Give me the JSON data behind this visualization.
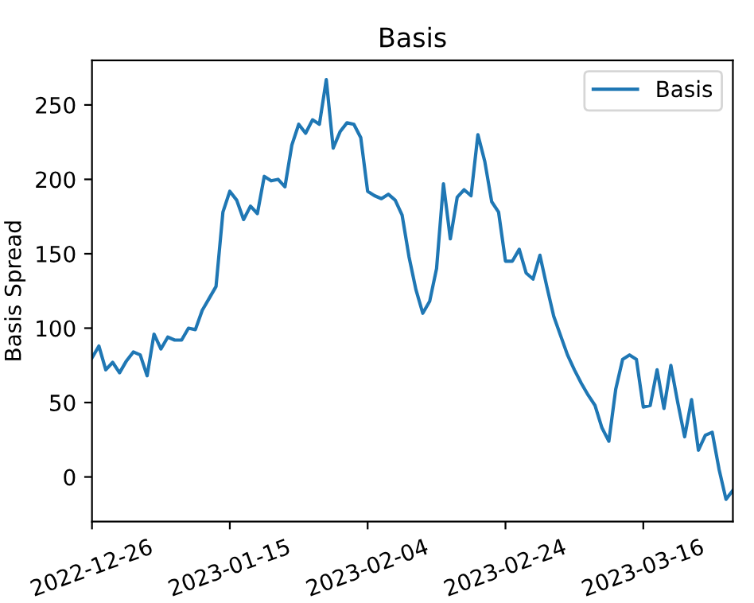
{
  "chart_data": {
    "type": "line",
    "title": "Basis",
    "ylabel": "Basis Spread",
    "x": [
      "2022-12-26",
      "2022-12-27",
      "2022-12-28",
      "2022-12-29",
      "2022-12-30",
      "2022-12-31",
      "2023-01-01",
      "2023-01-02",
      "2023-01-03",
      "2023-01-04",
      "2023-01-05",
      "2023-01-06",
      "2023-01-07",
      "2023-01-08",
      "2023-01-09",
      "2023-01-10",
      "2023-01-11",
      "2023-01-12",
      "2023-01-13",
      "2023-01-14",
      "2023-01-15",
      "2023-01-16",
      "2023-01-17",
      "2023-01-18",
      "2023-01-19",
      "2023-01-20",
      "2023-01-21",
      "2023-01-22",
      "2023-01-23",
      "2023-01-24",
      "2023-01-25",
      "2023-01-26",
      "2023-01-27",
      "2023-01-28",
      "2023-01-29",
      "2023-01-30",
      "2023-01-31",
      "2023-02-01",
      "2023-02-02",
      "2023-02-03",
      "2023-02-04",
      "2023-02-05",
      "2023-02-06",
      "2023-02-07",
      "2023-02-08",
      "2023-02-09",
      "2023-02-10",
      "2023-02-11",
      "2023-02-12",
      "2023-02-13",
      "2023-02-14",
      "2023-02-15",
      "2023-02-16",
      "2023-02-17",
      "2023-02-18",
      "2023-02-19",
      "2023-02-20",
      "2023-02-21",
      "2023-02-22",
      "2023-02-23",
      "2023-02-24",
      "2023-02-25",
      "2023-02-26",
      "2023-02-27",
      "2023-02-28",
      "2023-03-01",
      "2023-03-02",
      "2023-03-03",
      "2023-03-04",
      "2023-03-05",
      "2023-03-06",
      "2023-03-07",
      "2023-03-08",
      "2023-03-09",
      "2023-03-10",
      "2023-03-11",
      "2023-03-12",
      "2023-03-13",
      "2023-03-14",
      "2023-03-15",
      "2023-03-16",
      "2023-03-17",
      "2023-03-18",
      "2023-03-19",
      "2023-03-20",
      "2023-03-21",
      "2023-03-22",
      "2023-03-23",
      "2023-03-24",
      "2023-03-25",
      "2023-03-26",
      "2023-03-27",
      "2023-03-28",
      "2023-03-29"
    ],
    "series": [
      {
        "name": "Basis",
        "color": "#1f77b4",
        "values": [
          80,
          88,
          72,
          77,
          70,
          78,
          84,
          82,
          68,
          96,
          86,
          94,
          92,
          92,
          100,
          99,
          112,
          120,
          128,
          178,
          192,
          186,
          173,
          182,
          177,
          202,
          199,
          200,
          195,
          223,
          237,
          231,
          240,
          237,
          267,
          221,
          232,
          238,
          237,
          228,
          192,
          189,
          187,
          190,
          186,
          176,
          148,
          126,
          110,
          118,
          140,
          197,
          160,
          188,
          193,
          189,
          230,
          212,
          185,
          178,
          145,
          145,
          153,
          137,
          133,
          149,
          128,
          108,
          95,
          82,
          72,
          63,
          55,
          48,
          33,
          24,
          59,
          79,
          82,
          79,
          47,
          48,
          72,
          46,
          75,
          50,
          27,
          52,
          18,
          28,
          30,
          5,
          -15,
          -9
        ]
      }
    ],
    "xlim": [
      "2022-12-26",
      "2023-03-29"
    ],
    "xticks": [
      "2022-12-26",
      "2023-01-15",
      "2023-02-04",
      "2023-02-24",
      "2023-03-16"
    ],
    "ylim": [
      -30,
      280
    ],
    "yticks": [
      0,
      50,
      100,
      150,
      200,
      250
    ],
    "legend": "top right",
    "grid": false,
    "line_style": "solid",
    "marker": "none"
  }
}
